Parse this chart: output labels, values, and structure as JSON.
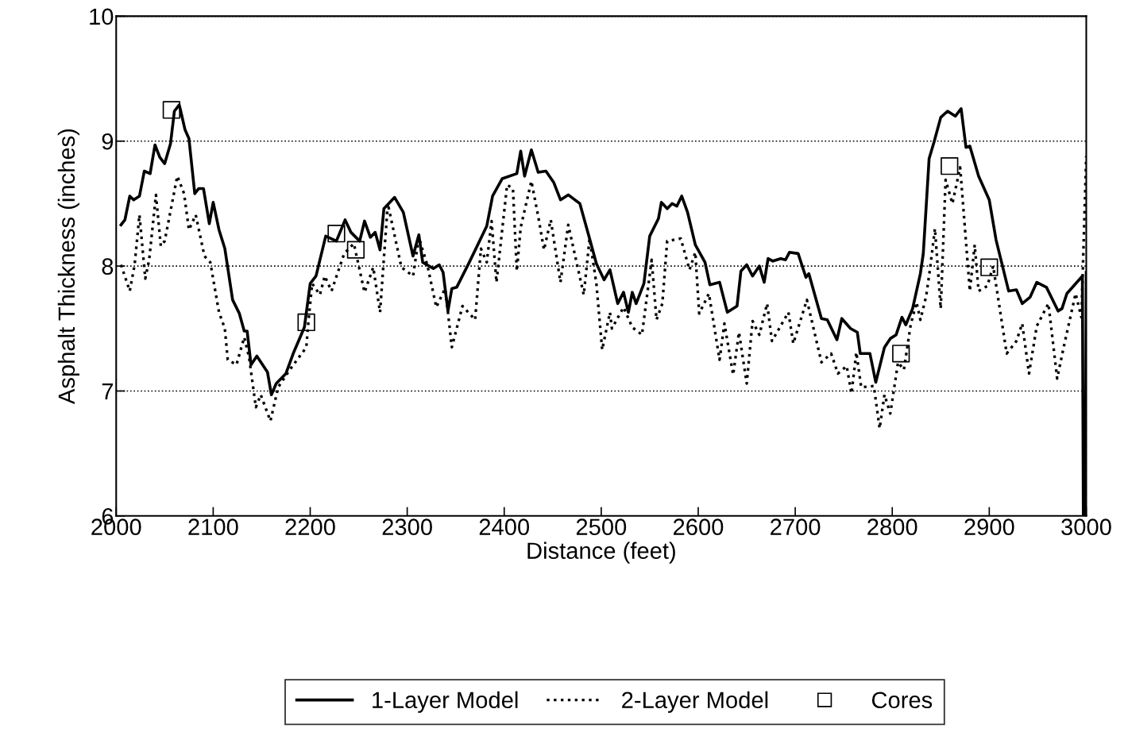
{
  "chart_data": {
    "type": "line",
    "xlabel": "Distance (feet)",
    "ylabel": "Asphalt Thickness (inches)",
    "xlim": [
      2000,
      3000
    ],
    "xticks": [
      2000,
      2100,
      2200,
      2300,
      2400,
      2500,
      2600,
      2700,
      2800,
      2900,
      3000
    ],
    "ylim": [
      6,
      10
    ],
    "yticks": [
      6,
      7,
      8,
      9,
      10
    ],
    "grid": "y",
    "legend": "bottom",
    "series": [
      {
        "name": "1-Layer Model",
        "color": "#000000",
        "line_style": "solid",
        "marker": "none",
        "x": [
          2005,
          2009,
          2014,
          2018,
          2024,
          2029,
          2035,
          2040,
          2045,
          2050,
          2056,
          2060,
          2065,
          2066,
          2071,
          2075,
          2081,
          2085,
          2090,
          2096,
          2100,
          2106,
          2112,
          2120,
          2127,
          2132,
          2135,
          2139,
          2145,
          2156,
          2160,
          2165,
          2175,
          2183,
          2194,
          2200,
          2206,
          2216,
          2227,
          2236,
          2242,
          2251,
          2256,
          2262,
          2267,
          2272,
          2276,
          2287,
          2296,
          2306,
          2312,
          2316,
          2327,
          2333,
          2337,
          2342,
          2346,
          2351,
          2364,
          2382,
          2388,
          2398,
          2413,
          2417,
          2421,
          2428,
          2435,
          2443,
          2451,
          2458,
          2466,
          2478,
          2488,
          2495,
          2503,
          2509,
          2517,
          2523,
          2528,
          2532,
          2536,
          2544,
          2550,
          2559,
          2562,
          2568,
          2573,
          2578,
          2583,
          2589,
          2597,
          2607,
          2612,
          2622,
          2630,
          2640,
          2644,
          2650,
          2656,
          2663,
          2668,
          2672,
          2677,
          2685,
          2690,
          2694,
          2703,
          2711,
          2714,
          2727,
          2733,
          2743,
          2748,
          2757,
          2764,
          2767,
          2777,
          2783,
          2792,
          2798,
          2804,
          2810,
          2814,
          2821,
          2829,
          2832,
          2838,
          2843,
          2850,
          2857,
          2865,
          2871,
          2876,
          2880,
          2889,
          2900,
          2907,
          2920,
          2928,
          2934,
          2942,
          2949,
          2959,
          2971,
          2975,
          2980,
          2996,
          2997,
          2999,
          3000
        ],
        "values": [
          8.33,
          8.37,
          8.56,
          8.53,
          8.56,
          8.76,
          8.74,
          8.97,
          8.87,
          8.82,
          8.98,
          9.24,
          9.29,
          9.26,
          9.09,
          9.02,
          8.58,
          8.62,
          8.62,
          8.34,
          8.51,
          8.29,
          8.14,
          7.73,
          7.62,
          7.48,
          7.48,
          7.21,
          7.28,
          7.15,
          6.97,
          7.06,
          7.14,
          7.31,
          7.51,
          7.86,
          7.92,
          8.24,
          8.2,
          8.37,
          8.27,
          8.2,
          8.36,
          8.23,
          8.27,
          8.13,
          8.46,
          8.55,
          8.43,
          8.08,
          8.25,
          8.03,
          7.98,
          8.01,
          7.95,
          7.64,
          7.82,
          7.83,
          8.03,
          8.32,
          8.56,
          8.7,
          8.74,
          8.92,
          8.72,
          8.93,
          8.75,
          8.76,
          8.67,
          8.53,
          8.57,
          8.5,
          8.22,
          8.02,
          7.89,
          7.97,
          7.7,
          7.79,
          7.63,
          7.79,
          7.7,
          7.86,
          8.24,
          8.38,
          8.51,
          8.46,
          8.5,
          8.48,
          8.56,
          8.43,
          8.17,
          8.03,
          7.85,
          7.87,
          7.63,
          7.68,
          7.96,
          8.01,
          7.92,
          8.0,
          7.87,
          8.06,
          8.04,
          8.06,
          8.05,
          8.11,
          8.1,
          7.91,
          7.94,
          7.58,
          7.57,
          7.41,
          7.58,
          7.5,
          7.47,
          7.3,
          7.3,
          7.07,
          7.35,
          7.42,
          7.45,
          7.59,
          7.53,
          7.66,
          7.94,
          8.1,
          8.86,
          8.99,
          9.19,
          9.24,
          9.2,
          9.26,
          8.95,
          8.96,
          8.72,
          8.53,
          8.21,
          7.8,
          7.81,
          7.7,
          7.75,
          7.87,
          7.83,
          7.64,
          7.66,
          7.78,
          7.92,
          6.0,
          6.0,
          7.95
        ]
      },
      {
        "name": "2-Layer Model",
        "color": "#000000",
        "line_style": "dotted",
        "marker": "none",
        "x": [
          2005,
          2014,
          2019,
          2024,
          2030,
          2034,
          2041,
          2046,
          2050,
          2063,
          2070,
          2075,
          2082,
          2091,
          2097,
          2106,
          2112,
          2115,
          2124,
          2132,
          2137,
          2144,
          2149,
          2159,
          2167,
          2178,
          2196,
          2198,
          2202,
          2210,
          2215,
          2222,
          2235,
          2245,
          2256,
          2265,
          2272,
          2280,
          2294,
          2306,
          2312,
          2321,
          2330,
          2339,
          2342,
          2346,
          2357,
          2370,
          2376,
          2382,
          2387,
          2392,
          2403,
          2409,
          2413,
          2417,
          2428,
          2435,
          2441,
          2448,
          2458,
          2466,
          2482,
          2488,
          2495,
          2501,
          2509,
          2511,
          2523,
          2532,
          2542,
          2552,
          2557,
          2563,
          2568,
          2582,
          2591,
          2597,
          2601,
          2611,
          2622,
          2627,
          2636,
          2642,
          2650,
          2656,
          2663,
          2671,
          2676,
          2693,
          2698,
          2712,
          2727,
          2737,
          2744,
          2753,
          2758,
          2763,
          2768,
          2781,
          2787,
          2792,
          2798,
          2806,
          2812,
          2819,
          2825,
          2829,
          2835,
          2839,
          2844,
          2850,
          2855,
          2862,
          2870,
          2880,
          2885,
          2889,
          2898,
          2904,
          2918,
          2928,
          2934,
          2941,
          2949,
          2961,
          2970,
          2977,
          2989,
          2995,
          3000
        ],
        "values": [
          8.01,
          7.8,
          8.01,
          8.41,
          7.9,
          8.05,
          8.57,
          8.16,
          8.2,
          8.72,
          8.58,
          8.29,
          8.41,
          8.08,
          8.03,
          7.63,
          7.5,
          7.25,
          7.21,
          7.43,
          7.27,
          6.87,
          6.97,
          6.76,
          7.03,
          7.16,
          7.35,
          7.54,
          7.86,
          7.77,
          7.92,
          7.8,
          8.1,
          8.18,
          7.79,
          7.99,
          7.63,
          8.5,
          7.99,
          7.92,
          8.23,
          8.0,
          7.67,
          7.82,
          7.63,
          7.35,
          7.68,
          7.57,
          8.14,
          8.03,
          8.36,
          7.87,
          8.65,
          8.62,
          7.96,
          8.31,
          8.68,
          8.4,
          8.13,
          8.37,
          7.87,
          8.33,
          7.77,
          8.22,
          7.86,
          7.33,
          7.63,
          7.5,
          7.67,
          7.51,
          7.45,
          8.05,
          7.57,
          7.7,
          8.2,
          8.22,
          7.97,
          8.11,
          7.62,
          7.78,
          7.25,
          7.54,
          7.13,
          7.47,
          7.06,
          7.56,
          7.45,
          7.7,
          7.4,
          7.63,
          7.38,
          7.73,
          7.23,
          7.3,
          7.14,
          7.2,
          6.98,
          7.31,
          7.03,
          7.04,
          6.7,
          6.97,
          6.82,
          7.23,
          7.17,
          7.53,
          7.71,
          7.57,
          7.76,
          7.98,
          8.3,
          7.66,
          8.69,
          8.5,
          8.79,
          7.8,
          8.17,
          7.8,
          7.84,
          8.0,
          7.3,
          7.4,
          7.54,
          7.14,
          7.52,
          7.7,
          7.1,
          7.36,
          7.78,
          7.59,
          8.88
        ]
      },
      {
        "name": "Cores",
        "type": "scatter",
        "color": "#000000",
        "marker": "square",
        "x": [
          2057,
          2196,
          2227,
          2247,
          2809,
          2859,
          2900
        ],
        "values": [
          9.25,
          7.55,
          8.26,
          8.13,
          7.3,
          8.8,
          7.99
        ]
      }
    ]
  }
}
